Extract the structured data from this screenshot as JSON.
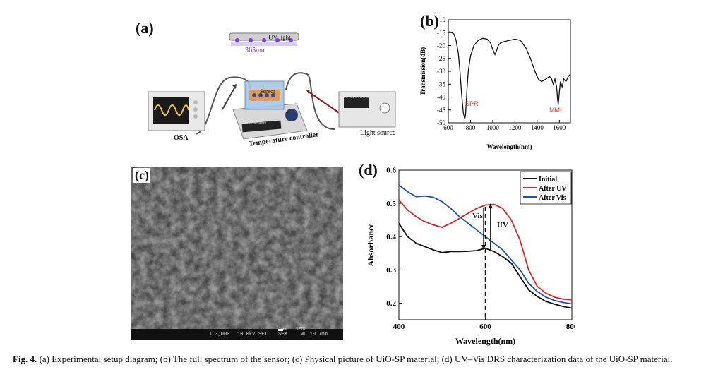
{
  "panel_a": {
    "label": "(a)",
    "uv_light": "UV light",
    "uv_wavelength": "365nm",
    "osa": "OSA",
    "sensor": "Sensor",
    "temperature_screen": "Temperature",
    "temperature_controller": "Temperature controller",
    "light_source": "Light source",
    "light_source_panel": "OUTPUT POWER"
  },
  "panel_b": {
    "label": "(b)",
    "annotation_spr": "SPR",
    "annotation_mmi": "MMI",
    "annotation_color": "#d9342b"
  },
  "panel_c": {
    "label": "(c)",
    "scalebar": {
      "magnification": "X 3,000",
      "voltage": "10.0kV",
      "detector": "SEI",
      "scale": "1µm",
      "maker": "JEOL",
      "mode": "SEM",
      "wd": "WD 10.7mm"
    }
  },
  "panel_d": {
    "label": "(d)",
    "vis_arrow": "Vis",
    "uv_arrow": "UV"
  },
  "caption": {
    "prefix": "Fig. 4.",
    "text": " (a) Experimental setup diagram; (b) The full spectrum of the sensor; (c) Physical picture of UiO-SP material; (d) UV–Vis DRS characterization data of the UiO-SP material."
  },
  "chart_data": [
    {
      "id": "b",
      "type": "line",
      "title": "",
      "xlabel": "Wavelength(nm)",
      "ylabel": "Transmission(dB)",
      "xlim": [
        600,
        1700
      ],
      "ylim": [
        -50,
        -10
      ],
      "xticks": [
        600,
        800,
        1000,
        1200,
        1400,
        1600
      ],
      "yticks": [
        -10,
        -15,
        -20,
        -25,
        -30,
        -35,
        -40,
        -45,
        -50
      ],
      "grid": false,
      "series": [
        {
          "color": "#111111",
          "x": [
            610,
            650,
            670,
            690,
            705,
            720,
            735,
            748,
            755,
            762,
            770,
            780,
            800,
            830,
            870,
            910,
            950,
            980,
            1000,
            1020,
            1035,
            1050,
            1070,
            1100,
            1150,
            1200,
            1250,
            1300,
            1340,
            1380,
            1410,
            1440,
            1480,
            1510,
            1530,
            1545,
            1560,
            1575,
            1585,
            1590,
            1600,
            1610,
            1625,
            1640,
            1660,
            1680,
            1700
          ],
          "y": [
            -14.5,
            -15.5,
            -18,
            -23,
            -30,
            -39,
            -46,
            -48.5,
            -47,
            -42,
            -36,
            -30,
            -24,
            -20,
            -18,
            -17.2,
            -17.5,
            -19,
            -21.5,
            -23.5,
            -22,
            -20,
            -19,
            -18.5,
            -18,
            -17.5,
            -18,
            -21,
            -25,
            -30,
            -33,
            -34,
            -33,
            -32,
            -33,
            -35,
            -33,
            -36,
            -41,
            -43,
            -38,
            -34,
            -36,
            -33,
            -34,
            -32,
            -31
          ]
        }
      ]
    },
    {
      "id": "d",
      "type": "line",
      "title": "",
      "xlabel": "Wavelength(nm)",
      "ylabel": "Absorbance",
      "xlim": [
        400,
        800
      ],
      "ylim": [
        0.15,
        0.6
      ],
      "xticks": [
        400,
        600,
        800
      ],
      "yticks": [
        0.2,
        0.3,
        0.4,
        0.5,
        0.6
      ],
      "grid": false,
      "legend_position": "top-right",
      "series": [
        {
          "name": "Initial",
          "color": "#111111",
          "x": [
            400,
            420,
            440,
            460,
            480,
            500,
            520,
            540,
            560,
            580,
            600,
            620,
            640,
            660,
            680,
            700,
            720,
            740,
            760,
            780,
            800
          ],
          "y": [
            0.44,
            0.4,
            0.38,
            0.37,
            0.36,
            0.352,
            0.355,
            0.355,
            0.356,
            0.358,
            0.365,
            0.355,
            0.34,
            0.32,
            0.28,
            0.24,
            0.22,
            0.205,
            0.197,
            0.19,
            0.185
          ]
        },
        {
          "name": "After UV",
          "color": "#d9262a",
          "x": [
            400,
            420,
            440,
            460,
            480,
            500,
            520,
            540,
            560,
            580,
            600,
            620,
            640,
            660,
            680,
            700,
            720,
            740,
            760,
            780,
            800
          ],
          "y": [
            0.51,
            0.48,
            0.46,
            0.445,
            0.435,
            0.428,
            0.44,
            0.455,
            0.47,
            0.485,
            0.495,
            0.497,
            0.485,
            0.45,
            0.39,
            0.3,
            0.25,
            0.23,
            0.218,
            0.212,
            0.21
          ]
        },
        {
          "name": "After Vis",
          "color": "#1f52b8",
          "x": [
            400,
            420,
            440,
            460,
            480,
            500,
            520,
            540,
            560,
            580,
            600,
            620,
            640,
            660,
            680,
            700,
            720,
            740,
            760,
            780,
            800
          ],
          "y": [
            0.555,
            0.535,
            0.52,
            0.522,
            0.518,
            0.505,
            0.485,
            0.46,
            0.44,
            0.42,
            0.4,
            0.38,
            0.36,
            0.33,
            0.3,
            0.26,
            0.235,
            0.218,
            0.208,
            0.202,
            0.198
          ]
        }
      ]
    }
  ]
}
